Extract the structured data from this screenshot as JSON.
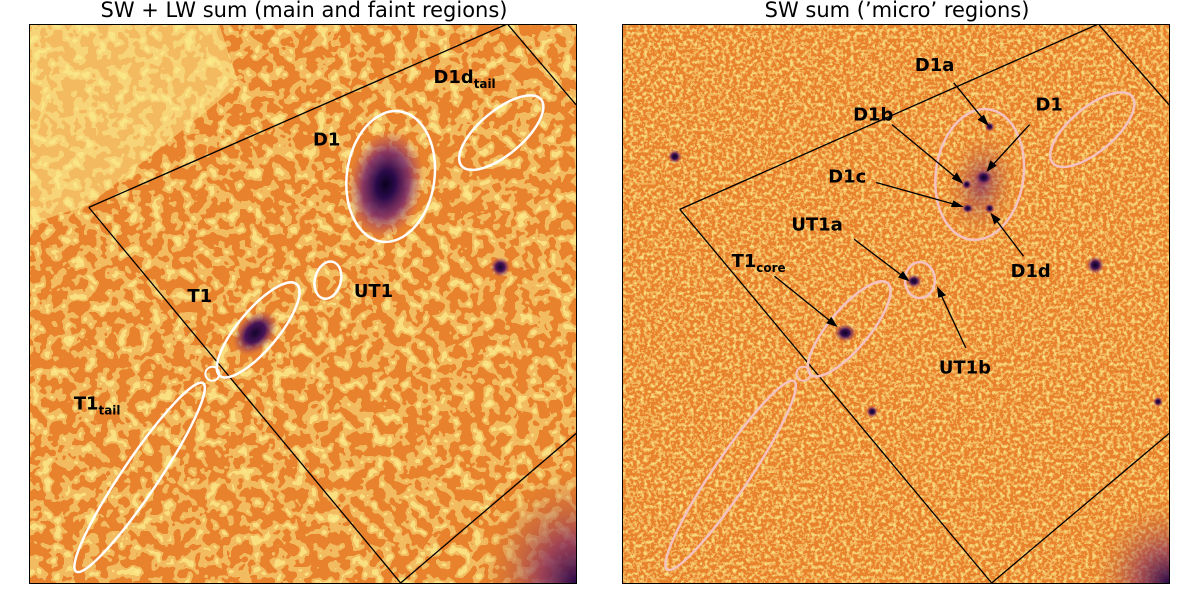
{
  "titles": {
    "left": "SW + LW sum (main and faint regions)",
    "right": "SW sum (’micro’ regions)"
  },
  "left_panel": {
    "labels": {
      "d1": "D1",
      "d1d_tail_main": "D1d",
      "d1d_tail_sub": "tail",
      "t1": "T1",
      "ut1": "UT1",
      "t1_tail_main": "T1",
      "t1_tail_sub": "tail"
    }
  },
  "right_panel": {
    "labels": {
      "d1a": "D1a",
      "d1b": "D1b",
      "d1": "D1",
      "d1c": "D1c",
      "ut1a": "UT1a",
      "t1core_main": "T1",
      "t1core_sub": "core",
      "d1d": "D1d",
      "ut1b": "UT1b"
    }
  },
  "colors": {
    "background_orange": "#e8822c",
    "bright_yellow": "#fbe98a",
    "dark_purple": "#2a0a4a",
    "region_white": "#ffffff",
    "region_pink": "#f4c2c0"
  }
}
